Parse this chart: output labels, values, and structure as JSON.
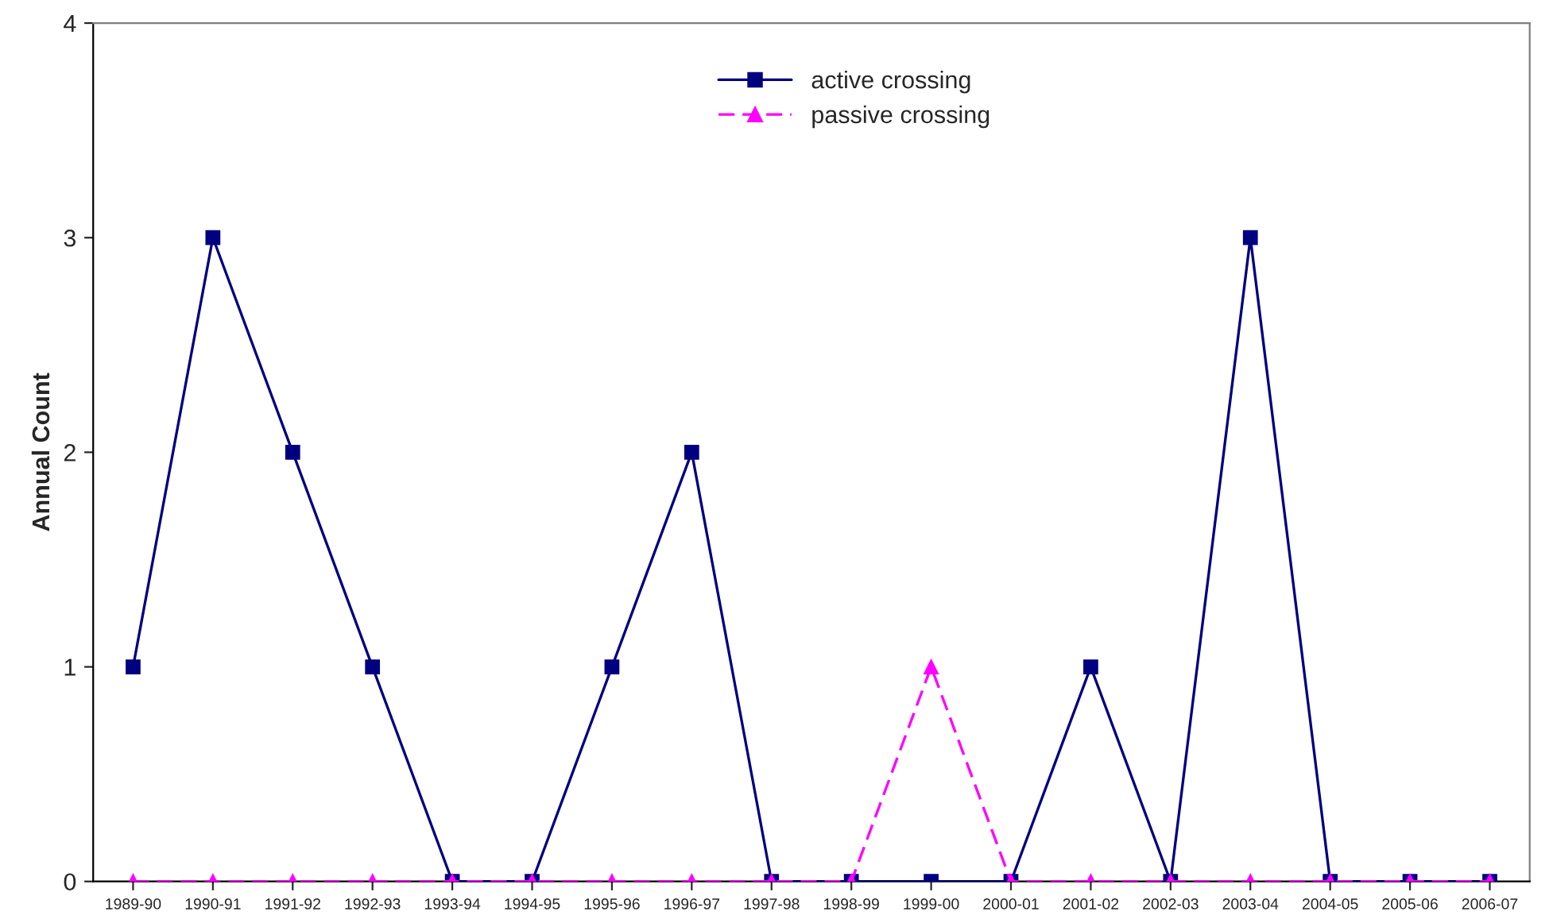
{
  "chart_data": {
    "type": "line",
    "ylabel": "Annual Count",
    "categories": [
      "1989-90",
      "1990-91",
      "1991-92",
      "1992-93",
      "1993-94",
      "1994-95",
      "1995-96",
      "1996-97",
      "1997-98",
      "1998-99",
      "1999-00",
      "2000-01",
      "2001-02",
      "2002-03",
      "2003-04",
      "2004-05",
      "2005-06",
      "2006-07"
    ],
    "series": [
      {
        "name": "active crossing",
        "color": "#000080",
        "marker": "square",
        "line_style": "solid",
        "values": [
          1,
          3,
          2,
          1,
          0,
          0,
          1,
          2,
          0,
          0,
          0,
          0,
          1,
          0,
          3,
          0,
          0,
          0
        ]
      },
      {
        "name": "passive crossing",
        "color": "#ff00ff",
        "marker": "triangle",
        "line_style": "dashed",
        "values": [
          0,
          0,
          0,
          0,
          0,
          0,
          0,
          0,
          0,
          0,
          1,
          0,
          0,
          0,
          0,
          0,
          0,
          0
        ]
      }
    ],
    "ylim": [
      0,
      4
    ],
    "yticks": [
      0,
      1,
      2,
      3,
      4
    ],
    "grid": false,
    "legend": "top"
  }
}
